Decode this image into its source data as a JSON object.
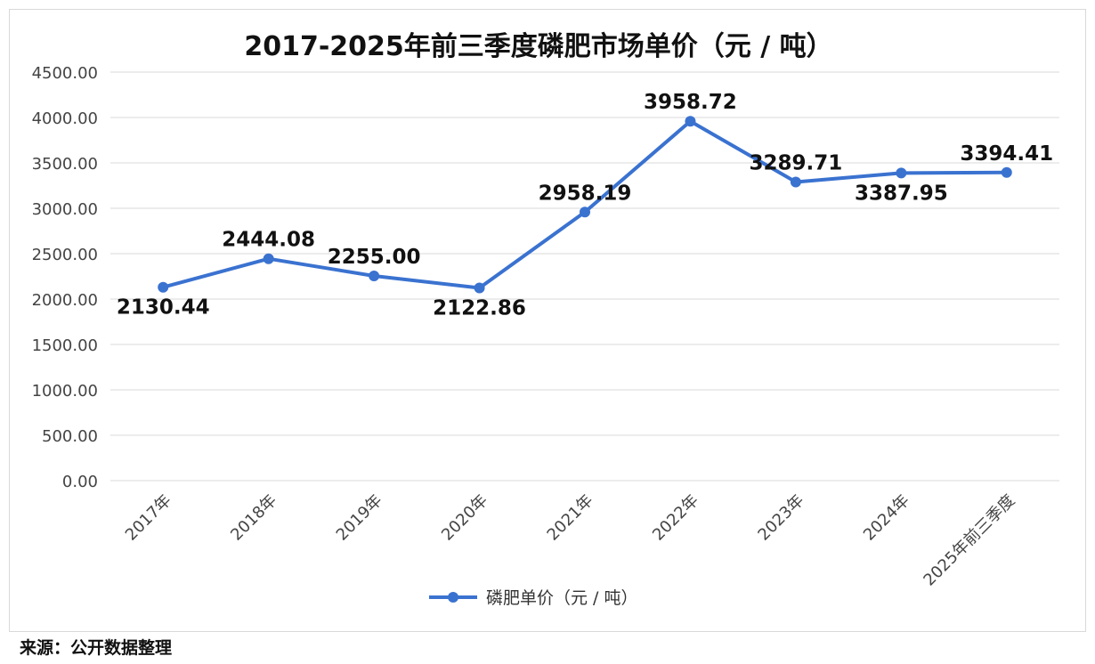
{
  "chart_data": {
    "type": "line",
    "title": "2017-2025年前三季度磷肥市场单价（元 / 吨）",
    "categories": [
      "2017年",
      "2018年",
      "2019年",
      "2020年",
      "2021年",
      "2022年",
      "2023年",
      "2024年",
      "2025年前三季度"
    ],
    "series": [
      {
        "name": "磷肥单价（元 / 吨）",
        "values": [
          2130.44,
          2444.08,
          2255.0,
          2122.86,
          2958.19,
          3958.72,
          3289.71,
          3387.95,
          3394.41
        ],
        "labels": [
          "2130.44",
          "2444.08",
          "2255.00",
          "2122.86",
          "2958.19",
          "3958.72",
          "3289.71",
          "3387.95",
          "3394.41"
        ],
        "label_positions": [
          "below",
          "above",
          "above",
          "below",
          "above",
          "above",
          "above",
          "below",
          "above"
        ],
        "color": "#3a72d0"
      }
    ],
    "y_ticks": [
      "0.00",
      "500.00",
      "1000.00",
      "1500.00",
      "2000.00",
      "2500.00",
      "3000.00",
      "3500.00",
      "4000.00",
      "4500.00"
    ],
    "ylim": [
      0,
      4500
    ],
    "xlabel": "",
    "ylabel": "",
    "grid": true,
    "legend_position": "bottom"
  },
  "source": "来源：公开数据整理",
  "colors": {
    "line": "#3a72d0",
    "grid": "#d9d9d9",
    "axis_text": "#444444"
  }
}
